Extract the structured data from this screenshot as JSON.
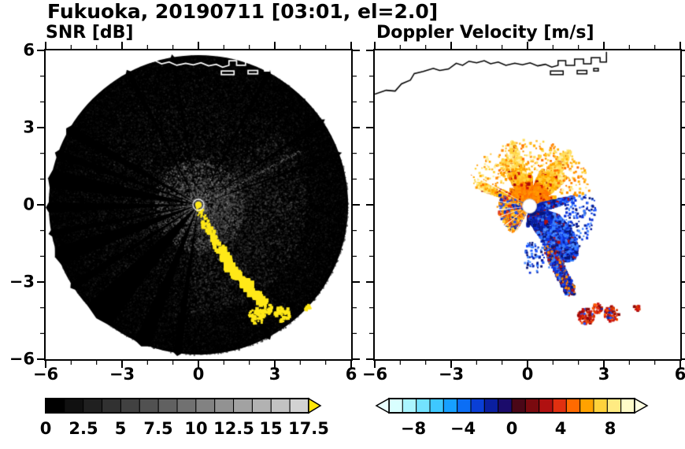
{
  "figure": {
    "title": "Fukuoka, 20190711 [03:01, el=2.0]"
  },
  "panels": {
    "snr": {
      "title": "SNR [dB]",
      "xticklabels": [
        "−6",
        "−3",
        "0",
        "3",
        "6"
      ],
      "yticklabels": [
        "6",
        "3",
        "0",
        "−3",
        "−6"
      ]
    },
    "velocity": {
      "title": "Doppler Velocity [m/s]",
      "xticklabels": [
        "−6",
        "−3",
        "0",
        "3",
        "6"
      ]
    }
  },
  "colorbars": {
    "snr": {
      "labels": [
        "0",
        "2.5",
        "5",
        "7.5",
        "10",
        "12.5",
        "15",
        "17.5"
      ],
      "min": 0,
      "max": 17.5,
      "segments": [
        "#000000",
        "#101010",
        "#202020",
        "#313131",
        "#414141",
        "#515151",
        "#616161",
        "#717171",
        "#828282",
        "#929292",
        "#a2a2a2",
        "#b2b2b2",
        "#c2c2c2",
        "#d2d2d2"
      ],
      "overflow": "#ffe60a"
    },
    "velocity": {
      "labels": [
        "−8",
        "−4",
        "0",
        "4",
        "8"
      ],
      "min": -10,
      "max": 10,
      "segments": [
        "#d9ffff",
        "#aaf5ff",
        "#73e2ff",
        "#3ec8ff",
        "#17a0ff",
        "#0b6ef5",
        "#0a3fd6",
        "#0a1fa0",
        "#1b0b6b",
        "#4a0717",
        "#7a0a0f",
        "#b01010",
        "#e03010",
        "#ff6a00",
        "#ffa200",
        "#ffd23c",
        "#ffeb82",
        "#fffbc8"
      ],
      "underflow": "#eaffff",
      "overflow": "#ffffe2"
    }
  },
  "colors": {
    "background": "#ffffff",
    "snr_disk": "#000000",
    "clutter_yellow": "#ffe818",
    "coast_snr": "#ffffff",
    "coast_vel": "#000000",
    "warm_palette": [
      "#ff8a00",
      "#ff7300",
      "#ff9a00",
      "#ffae00",
      "#ffbf2a",
      "#ffd23c",
      "#ffdf60",
      "#fff0a0"
    ],
    "warm_speckle": [
      "#cf1408",
      "#a80a0a"
    ],
    "cold_palette": [
      "#0a1f9e",
      "#081678",
      "#0d33d9",
      "#1f57ff",
      "#3b82ff",
      "#4f8dff"
    ],
    "cold_speckle": "#b01010",
    "mixed_palette": [
      "#ff8a00",
      "#e03010",
      "#2255ee",
      "#ffd23c",
      "#0a2bb0",
      "#ff9a00"
    ],
    "hot_palette": [
      "#c40f0f",
      "#e22810",
      "#8a0a0a",
      "#ff5500",
      "#d93500"
    ],
    "hot_speckle": [
      "#0a2bb0",
      "#1f57ff"
    ]
  },
  "chart_data": {
    "type": "heatmap",
    "title": "Fukuoka, 20190711 [03:01, el=2.0]",
    "site": "Fukuoka",
    "date": "20190711",
    "time": "03:01",
    "elevation_deg": 2.0,
    "panels": [
      {
        "name": "SNR",
        "units": "dB",
        "xlim": [
          -6,
          6
        ],
        "ylim": [
          -6,
          6
        ],
        "xticks": [
          -6,
          -3,
          0,
          3,
          6
        ],
        "yticks": [
          -6,
          -3,
          0,
          3,
          6
        ],
        "colorbar": {
          "min": 0,
          "max": 17.5,
          "step": 1.25,
          "tick_labels": [
            0,
            2.5,
            5,
            7.5,
            10,
            12.5,
            15,
            17.5
          ],
          "colormap": "black-to-gray",
          "over_color": "yellow"
        },
        "scan_disk_radius": 5.85,
        "blocked_sectors_deg": [
          [
            150,
            4
          ],
          [
            160,
            3
          ],
          [
            170,
            7
          ],
          [
            181,
            4
          ],
          [
            191,
            2.5
          ],
          [
            200,
            7
          ],
          [
            213,
            3
          ],
          [
            228,
            12
          ],
          [
            248,
            6
          ],
          [
            262,
            3
          ],
          [
            62,
            1.8
          ],
          [
            34,
            1.4
          ],
          [
            100,
            1.4
          ],
          [
            118,
            2
          ],
          [
            298,
            2
          ],
          [
            20,
            1.2
          ]
        ],
        "clutter_track": [
          [
            0.05,
            -0.2
          ],
          [
            0.3,
            -0.75
          ],
          [
            0.6,
            -1.3
          ],
          [
            0.95,
            -1.85
          ],
          [
            1.25,
            -2.35
          ],
          [
            1.55,
            -2.8
          ],
          [
            1.95,
            -3.2
          ],
          [
            2.3,
            -3.55
          ],
          [
            2.6,
            -3.85
          ]
        ],
        "clutter_blobs": [
          [
            2.3,
            -4.35,
            0.32
          ],
          [
            2.75,
            -4.05,
            0.2
          ],
          [
            3.3,
            -4.25,
            0.3
          ],
          [
            4.3,
            -4.0,
            0.12
          ]
        ]
      },
      {
        "name": "Doppler Velocity",
        "units": "m/s",
        "xlim": [
          -6,
          6
        ],
        "ylim": [
          -6,
          6
        ],
        "xticks": [
          -6,
          -3,
          0,
          3,
          6
        ],
        "yticks": [
          -6,
          -3,
          0,
          3,
          6
        ],
        "colorbar": {
          "min": -10,
          "max": 10,
          "tick_labels": [
            -8,
            -4,
            0,
            4,
            8
          ],
          "colormap": "cyan-blue-navy / darkred-red-orange-yellow",
          "under_color": "pale-cyan",
          "over_color": "pale-yellow"
        },
        "outbound_fan": {
          "angle_deg": [
            12,
            162
          ],
          "rmax": 2.3,
          "description": "away-from-radar +2..+9 m/s, orange-yellow, north through east of radar"
        },
        "inbound_region": {
          "angle_deg": [
            -95,
            12
          ],
          "rmax": 2.0,
          "description": "toward-radar -2..-9 m/s, blue-navy, east-southeast of radar"
        },
        "mixed_west_wedge": {
          "angle_deg": [
            158,
            240
          ],
          "rmax": 1.25
        },
        "echo_tail": [
          [
            0.85,
            -1.7
          ],
          [
            1.15,
            -2.3
          ],
          [
            1.45,
            -2.9
          ],
          [
            1.68,
            -3.35
          ]
        ],
        "echo_blobs": [
          [
            2.3,
            -4.35,
            0.32
          ],
          [
            2.75,
            -4.05,
            0.2
          ],
          [
            3.3,
            -4.25,
            0.3
          ],
          [
            4.3,
            -4.0,
            0.12
          ]
        ],
        "center_hole_radius": 0.28
      }
    ],
    "map": {
      "coastline": [
        [
          -6.0,
          4.3
        ],
        [
          -5.55,
          4.45
        ],
        [
          -5.2,
          4.42
        ],
        [
          -4.95,
          4.7
        ],
        [
          -4.6,
          4.85
        ],
        [
          -4.45,
          5.1
        ],
        [
          -4.1,
          5.18
        ],
        [
          -3.7,
          5.3
        ],
        [
          -3.45,
          5.22
        ],
        [
          -3.1,
          5.28
        ],
        [
          -2.8,
          5.5
        ],
        [
          -2.55,
          5.42
        ],
        [
          -2.3,
          5.58
        ],
        [
          -2.0,
          5.52
        ],
        [
          -1.7,
          5.6
        ],
        [
          -1.45,
          5.48
        ],
        [
          -1.15,
          5.55
        ],
        [
          -0.85,
          5.42
        ],
        [
          -0.5,
          5.5
        ],
        [
          -0.2,
          5.44
        ],
        [
          0.1,
          5.52
        ],
        [
          0.4,
          5.4
        ],
        [
          0.7,
          5.46
        ],
        [
          0.95,
          5.35
        ],
        [
          1.2,
          5.42
        ],
        [
          1.2,
          5.6
        ],
        [
          1.5,
          5.6
        ],
        [
          1.5,
          5.42
        ],
        [
          1.85,
          5.42
        ],
        [
          1.85,
          5.66
        ],
        [
          2.2,
          5.66
        ],
        [
          2.2,
          5.48
        ],
        [
          2.5,
          5.48
        ],
        [
          2.5,
          5.72
        ],
        [
          2.85,
          5.72
        ],
        [
          2.85,
          5.55
        ],
        [
          3.1,
          5.55
        ],
        [
          3.1,
          5.95
        ]
      ],
      "structures": [
        [
          0.9,
          5.2,
          0.5,
          0.14
        ],
        [
          1.95,
          5.22,
          0.38,
          0.13
        ],
        [
          2.6,
          5.3,
          0.18,
          0.1
        ]
      ]
    }
  }
}
